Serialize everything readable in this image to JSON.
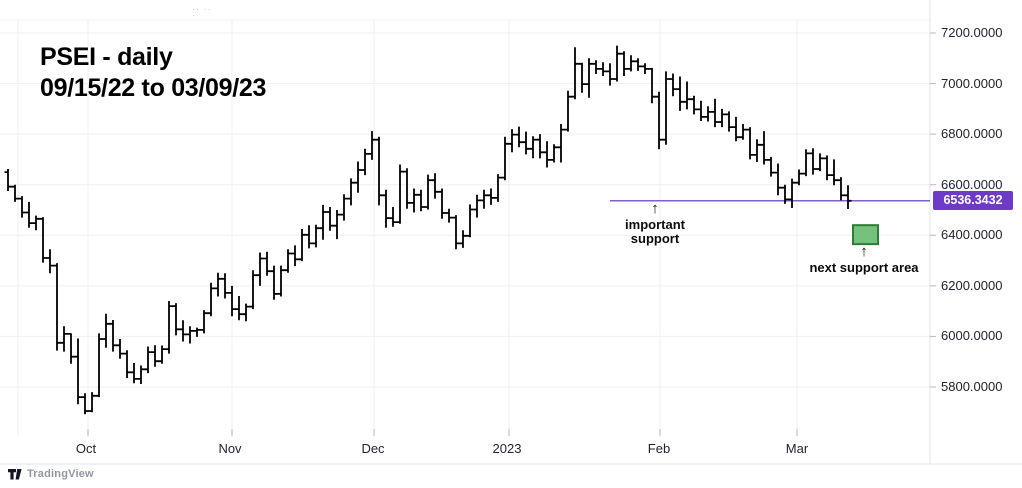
{
  "title": {
    "line1": "PSEI - daily",
    "line2": "09/15/22 to 03/09/23"
  },
  "annotations": {
    "important_support": {
      "arrow": "↑",
      "line1": "important",
      "line2": "support"
    },
    "next_support": {
      "arrow": "↑",
      "label": "next support area"
    }
  },
  "price_axis": {
    "labels": [
      "7200.0000",
      "7000.0000",
      "6800.0000",
      "6600.0000",
      "6400.0000",
      "6200.0000",
      "6000.0000",
      "5800.0000"
    ],
    "last_price_label": "6536.3432"
  },
  "time_axis": {
    "labels": [
      "Oct",
      "Nov",
      "Dec",
      "2023",
      "Feb",
      "Mar"
    ]
  },
  "attribution": {
    "text": "TradingView"
  },
  "colors": {
    "bar": "#000000",
    "support_line": "#7e62c9",
    "price_badge": "#6e3bc8",
    "next_area_fill": "#76c17c",
    "next_area_border": "#2e7d34",
    "grid": "#edeff3",
    "axis_border": "#e0e3eb",
    "tick": "#b6bac4",
    "axis_text": "#20242f"
  },
  "chart_data": {
    "type": "bar",
    "style": "ohlc-bars",
    "symbol": "PSEI",
    "timeframe": "daily",
    "date_range": "09/15/22 to 03/09/23",
    "title": "PSEI - daily 09/15/22 to 03/09/23",
    "ylim": [
      5612,
      7280
    ],
    "y_axis": {
      "ticks": [
        7200,
        7000,
        6800,
        6600,
        6400,
        6200,
        6000,
        5800
      ],
      "grid": true
    },
    "x_axis": {
      "month_labels": [
        "Oct",
        "Nov",
        "Dec",
        "2023",
        "Feb",
        "Mar"
      ],
      "grid": true
    },
    "support_line": {
      "price": 6536.3432,
      "label": "important support"
    },
    "next_support_area": {
      "price_high": 6440,
      "price_low": 6365,
      "label": "next support area"
    },
    "last_close": 6536.3432,
    "bars_ohlc": [
      [
        6650,
        6662,
        6575,
        6592
      ],
      [
        6592,
        6600,
        6532,
        6545
      ],
      [
        6545,
        6555,
        6470,
        6490
      ],
      [
        6490,
        6532,
        6430,
        6448
      ],
      [
        6448,
        6478,
        6420,
        6465
      ],
      [
        6465,
        6472,
        6292,
        6310
      ],
      [
        6310,
        6345,
        6250,
        6280
      ],
      [
        6280,
        6290,
        5944,
        5975
      ],
      [
        5975,
        6040,
        5940,
        6010
      ],
      [
        6010,
        6012,
        5892,
        5920
      ],
      [
        5920,
        5992,
        5732,
        5760
      ],
      [
        5760,
        5775,
        5692,
        5705
      ],
      [
        5705,
        5780,
        5700,
        5765
      ],
      [
        5765,
        6012,
        5760,
        5990
      ],
      [
        5990,
        6090,
        5955,
        6050
      ],
      [
        6050,
        6065,
        5940,
        5965
      ],
      [
        5965,
        5990,
        5912,
        5932
      ],
      [
        5932,
        5945,
        5835,
        5858
      ],
      [
        5858,
        5895,
        5815,
        5832
      ],
      [
        5832,
        5885,
        5812,
        5870
      ],
      [
        5870,
        5960,
        5855,
        5938
      ],
      [
        5938,
        5965,
        5880,
        5902
      ],
      [
        5902,
        5964,
        5892,
        5950
      ],
      [
        5950,
        6140,
        5932,
        6120
      ],
      [
        6120,
        6132,
        6004,
        6028
      ],
      [
        6028,
        6064,
        5980,
        6008
      ],
      [
        6008,
        6040,
        5972,
        6022
      ],
      [
        6022,
        6035,
        5998,
        6026
      ],
      [
        6026,
        6104,
        6012,
        6092
      ],
      [
        6092,
        6212,
        6080,
        6190
      ],
      [
        6190,
        6252,
        6158,
        6228
      ],
      [
        6228,
        6250,
        6150,
        6172
      ],
      [
        6172,
        6200,
        6080,
        6108
      ],
      [
        6108,
        6160,
        6064,
        6088
      ],
      [
        6088,
        6130,
        6060,
        6118
      ],
      [
        6118,
        6262,
        6108,
        6242
      ],
      [
        6242,
        6332,
        6200,
        6308
      ],
      [
        6308,
        6335,
        6240,
        6258
      ],
      [
        6258,
        6280,
        6145,
        6168
      ],
      [
        6168,
        6280,
        6158,
        6262
      ],
      [
        6262,
        6345,
        6252,
        6328
      ],
      [
        6328,
        6360,
        6278,
        6305
      ],
      [
        6305,
        6425,
        6298,
        6402
      ],
      [
        6402,
        6440,
        6348,
        6368
      ],
      [
        6368,
        6442,
        6352,
        6428
      ],
      [
        6428,
        6520,
        6382,
        6492
      ],
      [
        6492,
        6512,
        6418,
        6438
      ],
      [
        6438,
        6500,
        6385,
        6482
      ],
      [
        6482,
        6562,
        6458,
        6545
      ],
      [
        6545,
        6625,
        6518,
        6608
      ],
      [
        6608,
        6692,
        6568,
        6658
      ],
      [
        6658,
        6742,
        6638,
        6722
      ],
      [
        6722,
        6812,
        6698,
        6778
      ],
      [
        6778,
        6790,
        6518,
        6558
      ],
      [
        6558,
        6580,
        6430,
        6468
      ],
      [
        6468,
        6512,
        6434,
        6452
      ],
      [
        6452,
        6680,
        6446,
        6652
      ],
      [
        6652,
        6665,
        6505,
        6528
      ],
      [
        6528,
        6585,
        6490,
        6560
      ],
      [
        6560,
        6580,
        6495,
        6512
      ],
      [
        6512,
        6640,
        6502,
        6618
      ],
      [
        6618,
        6645,
        6545,
        6572
      ],
      [
        6572,
        6585,
        6465,
        6488
      ],
      [
        6488,
        6505,
        6450,
        6470
      ],
      [
        6470,
        6480,
        6345,
        6368
      ],
      [
        6368,
        6420,
        6350,
        6398
      ],
      [
        6398,
        6522,
        6392,
        6502
      ],
      [
        6502,
        6560,
        6470,
        6538
      ],
      [
        6538,
        6580,
        6505,
        6558
      ],
      [
        6558,
        6585,
        6520,
        6548
      ],
      [
        6548,
        6642,
        6532,
        6628
      ],
      [
        6628,
        6790,
        6618,
        6762
      ],
      [
        6762,
        6820,
        6728,
        6798
      ],
      [
        6798,
        6830,
        6748,
        6768
      ],
      [
        6768,
        6810,
        6720,
        6742
      ],
      [
        6742,
        6792,
        6705,
        6778
      ],
      [
        6778,
        6800,
        6704,
        6728
      ],
      [
        6728,
        6772,
        6668,
        6698
      ],
      [
        6698,
        6760,
        6688,
        6748
      ],
      [
        6748,
        6840,
        6688,
        6818
      ],
      [
        6818,
        6972,
        6810,
        6948
      ],
      [
        6948,
        7144,
        6938,
        7078
      ],
      [
        7078,
        7082,
        6964,
        6998
      ],
      [
        6998,
        7100,
        6944,
        7078
      ],
      [
        7078,
        7092,
        7038,
        7058
      ],
      [
        7058,
        7084,
        7030,
        7048
      ],
      [
        7048,
        7080,
        6992,
        7018
      ],
      [
        7018,
        7150,
        7008,
        7118
      ],
      [
        7118,
        7128,
        7030,
        7058
      ],
      [
        7058,
        7112,
        7048,
        7088
      ],
      [
        7088,
        7100,
        7050,
        7068
      ],
      [
        7068,
        7080,
        7038,
        7058
      ],
      [
        7058,
        7062,
        6922,
        6948
      ],
      [
        6948,
        6968,
        6740,
        6778
      ],
      [
        6778,
        7048,
        6758,
        7018
      ],
      [
        7018,
        7040,
        6950,
        6978
      ],
      [
        6978,
        7028,
        6892,
        6928
      ],
      [
        6928,
        7008,
        6898,
        6938
      ],
      [
        6938,
        6952,
        6878,
        6898
      ],
      [
        6898,
        6932,
        6852,
        6868
      ],
      [
        6868,
        6910,
        6850,
        6888
      ],
      [
        6888,
        6940,
        6828,
        6848
      ],
      [
        6848,
        6900,
        6828,
        6878
      ],
      [
        6878,
        6890,
        6810,
        6828
      ],
      [
        6828,
        6868,
        6772,
        6788
      ],
      [
        6788,
        6840,
        6778,
        6818
      ],
      [
        6818,
        6828,
        6700,
        6718
      ],
      [
        6718,
        6780,
        6690,
        6758
      ],
      [
        6758,
        6812,
        6680,
        6698
      ],
      [
        6698,
        6710,
        6632,
        6648
      ],
      [
        6648,
        6684,
        6558,
        6588
      ],
      [
        6588,
        6600,
        6524,
        6542
      ],
      [
        6542,
        6624,
        6508,
        6608
      ],
      [
        6608,
        6660,
        6598,
        6644
      ],
      [
        6644,
        6740,
        6634,
        6724
      ],
      [
        6724,
        6744,
        6640,
        6662
      ],
      [
        6662,
        6724,
        6654,
        6704
      ],
      [
        6704,
        6716,
        6618,
        6638
      ],
      [
        6638,
        6700,
        6598,
        6618
      ],
      [
        6618,
        6630,
        6538,
        6558
      ],
      [
        6558,
        6598,
        6504,
        6536.34
      ]
    ]
  }
}
